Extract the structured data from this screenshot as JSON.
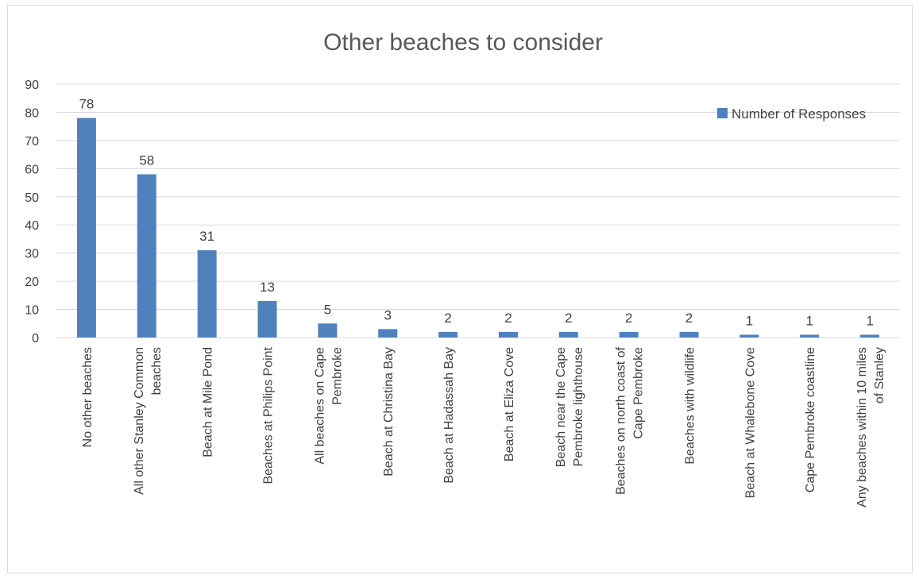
{
  "chart_data": {
    "type": "bar",
    "title": "Other beaches to consider",
    "xlabel": "",
    "ylabel": "",
    "ylim": [
      0,
      90
    ],
    "yticks": [
      0,
      10,
      20,
      30,
      40,
      50,
      60,
      70,
      80,
      90
    ],
    "grid": true,
    "legend_position": "top-right",
    "bar_color": "#4f81bd",
    "categories": [
      [
        "No other beaches"
      ],
      [
        "All other Stanley Common",
        "beaches"
      ],
      [
        "Beach at Mile Pond"
      ],
      [
        "Beaches at Philips Point"
      ],
      [
        "All beaches on Cape",
        "Pembroke"
      ],
      [
        "Beach at Christina Bay"
      ],
      [
        "Beach at Hadassah Bay"
      ],
      [
        "Beach at Eliza Cove"
      ],
      [
        "Beach near the Cape",
        "Pembroke lighthouse"
      ],
      [
        "Beaches on north coast of",
        "Cape Pembroke"
      ],
      [
        "Beaches with wildlife"
      ],
      [
        "Beach at Whalebone Cove"
      ],
      [
        "Cape Pembroke coastline"
      ],
      [
        "Any beaches within 10 miles",
        "of Stanley"
      ]
    ],
    "series": [
      {
        "name": "Number of Responses",
        "values": [
          78,
          58,
          31,
          13,
          5,
          3,
          2,
          2,
          2,
          2,
          2,
          1,
          1,
          1
        ]
      }
    ]
  }
}
